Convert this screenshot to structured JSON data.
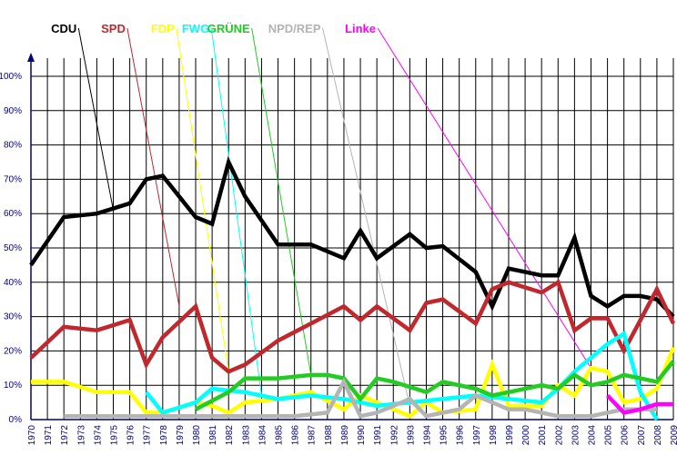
{
  "chart_data": {
    "type": "line",
    "title": "",
    "xlabel": "",
    "ylabel": "",
    "ylim": [
      0,
      100
    ],
    "grid": true,
    "legend": "top",
    "yticks": [
      "0%",
      "10%",
      "20%",
      "30%",
      "40%",
      "50%",
      "60%",
      "70%",
      "80%",
      "90%",
      "100%"
    ],
    "x": [
      "1970",
      "1971",
      "1972",
      "1973",
      "1974",
      "1975",
      "1976",
      "1977",
      "1978",
      "1979",
      "1980",
      "1981",
      "1982",
      "1983",
      "1984",
      "1985",
      "1986",
      "1987",
      "1988",
      "1989",
      "1990",
      "1991",
      "1992",
      "1993",
      "1994",
      "1995",
      "1996",
      "1997",
      "1998",
      "1999",
      "2000",
      "2001",
      "2002",
      "2003",
      "2004",
      "2005",
      "2006",
      "2007",
      "2008",
      "2009"
    ],
    "series": [
      {
        "name": "CDU",
        "color": "#000000",
        "legend_year": "1972",
        "target": [
          1975,
          61
        ],
        "points": [
          [
            1970,
            45
          ],
          [
            1972,
            59
          ],
          [
            1974,
            60
          ],
          [
            1976,
            63
          ],
          [
            1977,
            70
          ],
          [
            1978,
            71
          ],
          [
            1980,
            59
          ],
          [
            1981,
            57
          ],
          [
            1982,
            75
          ],
          [
            1983,
            65
          ],
          [
            1985,
            51
          ],
          [
            1987,
            51
          ],
          [
            1989,
            47
          ],
          [
            1990,
            55
          ],
          [
            1991,
            47
          ],
          [
            1993,
            54
          ],
          [
            1994,
            50
          ],
          [
            1995,
            50.5
          ],
          [
            1997,
            43
          ],
          [
            1998,
            33
          ],
          [
            1999,
            44
          ],
          [
            2001,
            42
          ],
          [
            2002,
            42
          ],
          [
            2003,
            53
          ],
          [
            2004,
            36
          ],
          [
            2005,
            33
          ],
          [
            2006,
            36
          ],
          [
            2007,
            36
          ],
          [
            2008,
            35
          ],
          [
            2009,
            30
          ]
        ]
      },
      {
        "name": "SPD",
        "color": "#c0282d",
        "legend_year": "1975",
        "target": [
          1979,
          33
        ],
        "points": [
          [
            1970,
            18
          ],
          [
            1972,
            27
          ],
          [
            1974,
            26
          ],
          [
            1976,
            29
          ],
          [
            1977,
            16
          ],
          [
            1978,
            24
          ],
          [
            1980,
            33
          ],
          [
            1981,
            18
          ],
          [
            1982,
            14
          ],
          [
            1983,
            16
          ],
          [
            1985,
            23
          ],
          [
            1987,
            28
          ],
          [
            1989,
            33
          ],
          [
            1990,
            29
          ],
          [
            1991,
            33
          ],
          [
            1993,
            26
          ],
          [
            1994,
            34
          ],
          [
            1995,
            35
          ],
          [
            1997,
            28
          ],
          [
            1998,
            38
          ],
          [
            1999,
            40
          ],
          [
            2001,
            37
          ],
          [
            2002,
            40
          ],
          [
            2003,
            26
          ],
          [
            2004,
            29.5
          ],
          [
            2005,
            29.5
          ],
          [
            2006,
            20
          ],
          [
            2008,
            38
          ],
          [
            2009,
            28
          ]
        ]
      },
      {
        "name": "FDP",
        "color": "#ffff00",
        "legend_year": "1978",
        "target": [
          1982,
          14
        ],
        "points": [
          [
            1970,
            11
          ],
          [
            1972,
            11
          ],
          [
            1974,
            8
          ],
          [
            1976,
            8
          ],
          [
            1977,
            2
          ],
          [
            1978,
            2
          ],
          [
            1980,
            5
          ],
          [
            1981,
            4
          ],
          [
            1982,
            2
          ],
          [
            1983,
            5
          ],
          [
            1985,
            6
          ],
          [
            1987,
            8
          ],
          [
            1989,
            3
          ],
          [
            1990,
            7
          ],
          [
            1991,
            5
          ],
          [
            1993,
            1
          ],
          [
            1994,
            5
          ],
          [
            1995,
            2
          ],
          [
            1997,
            3
          ],
          [
            1998,
            16
          ],
          [
            1999,
            4
          ],
          [
            2001,
            4
          ],
          [
            2002,
            10
          ],
          [
            2003,
            7
          ],
          [
            2004,
            15
          ],
          [
            2005,
            14
          ],
          [
            2006,
            5
          ],
          [
            2007,
            6
          ],
          [
            2008,
            9
          ],
          [
            2009,
            21
          ]
        ]
      },
      {
        "name": "FWG",
        "color": "#00ffff",
        "legend_year": "1980",
        "target": [
          1984,
          7
        ],
        "points": [
          [
            1977,
            8
          ],
          [
            1978,
            2
          ],
          [
            1980,
            5
          ],
          [
            1981,
            9
          ],
          [
            1983,
            8
          ],
          [
            1985,
            6
          ],
          [
            1987,
            7
          ],
          [
            1989,
            6
          ],
          [
            1991,
            4
          ],
          [
            1993,
            5
          ],
          [
            1995,
            6
          ],
          [
            1997,
            7
          ],
          [
            1999,
            6
          ],
          [
            2001,
            5
          ],
          [
            2002,
            9
          ],
          [
            2003,
            14
          ],
          [
            2004,
            18
          ],
          [
            2005,
            22
          ],
          [
            2006,
            25
          ],
          [
            2007,
            8
          ],
          [
            2008,
            0
          ]
        ]
      },
      {
        "name": "GRÜNE",
        "color": "#22cc22",
        "legend_year": "1982",
        "target": [
          1987,
          13
        ],
        "points": [
          [
            1980,
            3
          ],
          [
            1982,
            8
          ],
          [
            1983,
            12
          ],
          [
            1985,
            12
          ],
          [
            1987,
            13
          ],
          [
            1988,
            13
          ],
          [
            1989,
            12
          ],
          [
            1990,
            6
          ],
          [
            1991,
            12
          ],
          [
            1992,
            11
          ],
          [
            1994,
            8
          ],
          [
            1995,
            11
          ],
          [
            1997,
            9
          ],
          [
            1998,
            7
          ],
          [
            1999,
            8
          ],
          [
            2001,
            10
          ],
          [
            2002,
            9
          ],
          [
            2003,
            13
          ],
          [
            2004,
            10
          ],
          [
            2005,
            11
          ],
          [
            2006,
            13
          ],
          [
            2007,
            12
          ],
          [
            2008,
            11
          ],
          [
            2009,
            17
          ]
        ]
      },
      {
        "name": "NPD/REP",
        "color": "#b4b4b4",
        "legend_year": "1986",
        "target": [
          1993,
          4
        ],
        "points": [
          [
            1972,
            1
          ],
          [
            1986,
            1
          ],
          [
            1988,
            2
          ],
          [
            1989,
            11
          ],
          [
            1990,
            1
          ],
          [
            1991,
            2
          ],
          [
            1992,
            4
          ],
          [
            1993,
            6
          ],
          [
            1994,
            1
          ],
          [
            1995,
            2
          ],
          [
            1996,
            3
          ],
          [
            1997,
            7
          ],
          [
            1998,
            5
          ],
          [
            1999,
            3
          ],
          [
            2000,
            3
          ],
          [
            2001,
            2
          ],
          [
            2002,
            1
          ],
          [
            2003,
            1
          ],
          [
            2004,
            1
          ],
          [
            2005,
            2
          ],
          [
            2006,
            3
          ],
          [
            2008,
            3
          ]
        ]
      },
      {
        "name": "Linke",
        "color": "#ff00ff",
        "legend_year": "1990",
        "target": [
          2004,
          15
        ],
        "points": [
          [
            2005,
            7
          ],
          [
            2006,
            2
          ],
          [
            2007,
            3
          ],
          [
            2008,
            4.5
          ],
          [
            2009,
            4.5
          ]
        ]
      }
    ]
  }
}
